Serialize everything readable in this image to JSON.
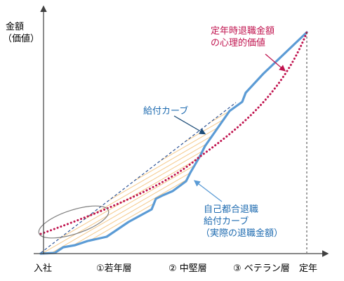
{
  "axes": {
    "y_label_line1": "金額",
    "y_label_line2": "（価値）"
  },
  "x_ticks": [
    "入社",
    "①若年層",
    "② 中堅層",
    "③ ベテラン層",
    "定年"
  ],
  "labels": {
    "psych_value_line1": "定年時退職金額",
    "psych_value_line2": "の心理的価値",
    "benefit_curve": "給付カーブ",
    "actual_line1": "自己都合退職",
    "actual_line2": "給付カーブ",
    "actual_line3": "（実際の退職金額）"
  },
  "colors": {
    "actual_curve": "#5b9bd5",
    "psych_curve": "#c0134e",
    "dashed_line": "#2f5597",
    "hatch": "#f5c98a",
    "ellipse": "#7f7f7f",
    "axis": "#404040"
  }
}
